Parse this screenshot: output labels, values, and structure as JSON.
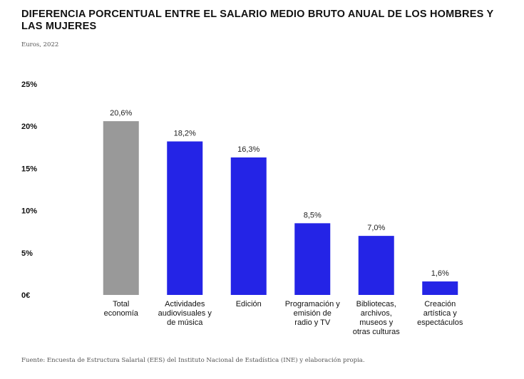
{
  "header": {
    "title": "DIFERENCIA PORCENTUAL ENTRE EL SALARIO MEDIO BRUTO ANUAL DE LOS HOMBRES Y LAS MUJERES",
    "subtitle": "Euros, 2022"
  },
  "footer": {
    "source": "Fuente:  Encuesta de Estructura Salarial (EES) del Instituto Nacional de Estadística (INE) y elaboración propia."
  },
  "colors": {
    "total": "#999999",
    "sector": "#2424e6"
  },
  "chart_data": {
    "type": "bar",
    "title": "DIFERENCIA PORCENTUAL ENTRE EL SALARIO MEDIO BRUTO ANUAL DE LOS HOMBRES Y LAS MUJERES",
    "subtitle": "Euros, 2022",
    "xlabel": "",
    "ylabel": "",
    "ylim": [
      0,
      25
    ],
    "yticks": [
      0,
      5,
      10,
      15,
      20,
      25
    ],
    "ytick_labels": [
      "0€",
      "5%",
      "10%",
      "15%",
      "20%",
      "25%"
    ],
    "grid": false,
    "legend": "none",
    "categories": [
      [
        "Total",
        "economía"
      ],
      [
        "Actividades",
        "audiovisuales y",
        "de música"
      ],
      [
        "Edición"
      ],
      [
        "Programación y",
        "emisión de",
        "radio y TV"
      ],
      [
        "Bibliotecas,",
        "archivos,",
        "museos y",
        "otras culturas"
      ],
      [
        "Creación",
        "artística y",
        "espectáculos"
      ]
    ],
    "values": [
      20.6,
      18.2,
      16.3,
      8.5,
      7.0,
      1.6
    ],
    "value_labels": [
      "20,6%",
      "18,2%",
      "16,3%",
      "8,5%",
      "7,0%",
      "1,6%"
    ]
  }
}
